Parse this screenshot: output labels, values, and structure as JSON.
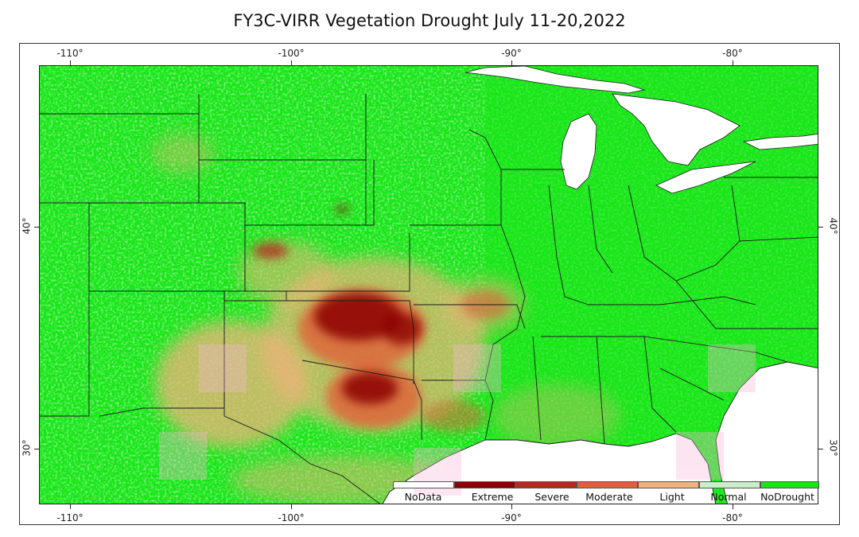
{
  "title": "FY3C-VIRR Vegetation Drought July 11-20,2022",
  "axes": {
    "top_ticks": [
      "-110°",
      "-100°",
      "-90°",
      "-80°"
    ],
    "bottom_ticks": [
      "-110°",
      "-100°",
      "-90°",
      "-80°"
    ],
    "left_ticks": [
      "40°",
      "30°"
    ],
    "right_ticks": [
      "40°",
      "30°"
    ]
  },
  "legend": {
    "items": [
      {
        "label": "NoData",
        "color": "#ffffff"
      },
      {
        "label": "Extreme",
        "color": "#8b0000"
      },
      {
        "label": "Severe",
        "color": "#b22b1f"
      },
      {
        "label": "Moderate",
        "color": "#e0603a"
      },
      {
        "label": "Light",
        "color": "#f0b27a"
      },
      {
        "label": "Normal",
        "color": "#c8f0c8"
      },
      {
        "label": "NoDrought",
        "color": "#16e616"
      }
    ]
  },
  "colors": {
    "land": "#16e616",
    "water": "#ffffff",
    "boundary": "#1a1a1a"
  }
}
